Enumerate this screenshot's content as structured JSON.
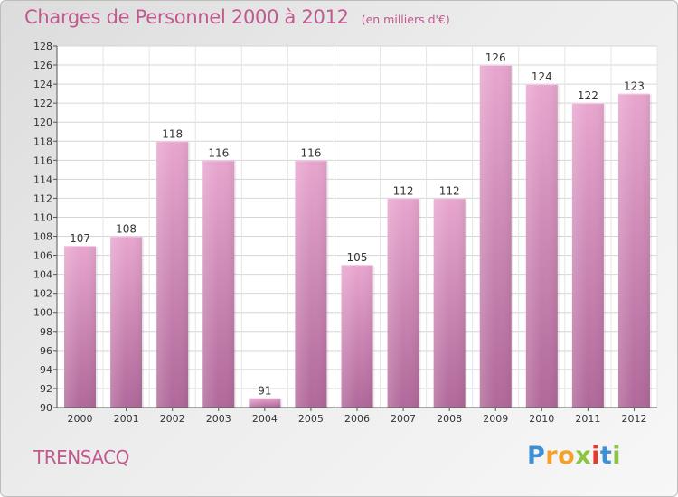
{
  "header": {
    "title": "Charges de Personnel 2000 à 2012",
    "subtitle": "(en milliers d'€)"
  },
  "footer": {
    "commune": "TRENSACQ",
    "logo_letters": [
      "P",
      "r",
      "o",
      "x",
      "i",
      "t",
      "i"
    ]
  },
  "colors": {
    "title": "#c05a8e",
    "bar_top": "#e8a6cf",
    "bar_bottom": "#b0689a",
    "logo": [
      "#3d8fd6",
      "#f2a12a",
      "#f2a12a",
      "#8bc43f",
      "#e63a2e",
      "#3d8fd6",
      "#8bc43f"
    ]
  },
  "chart_data": {
    "type": "bar",
    "title": "Charges de Personnel 2000 à 2012",
    "subtitle": "(en milliers d'€)",
    "xlabel": "",
    "ylabel": "",
    "categories": [
      "2000",
      "2001",
      "2002",
      "2003",
      "2004",
      "2005",
      "2006",
      "2007",
      "2008",
      "2009",
      "2010",
      "2011",
      "2012"
    ],
    "values": [
      107,
      108,
      118,
      116,
      91,
      116,
      105,
      112,
      112,
      126,
      124,
      122,
      123
    ],
    "ylim": [
      90,
      128
    ],
    "yticks": [
      90,
      92,
      94,
      96,
      98,
      100,
      102,
      104,
      106,
      108,
      110,
      112,
      114,
      116,
      118,
      120,
      122,
      124,
      126,
      128
    ],
    "grid": true,
    "data_labels": true
  }
}
